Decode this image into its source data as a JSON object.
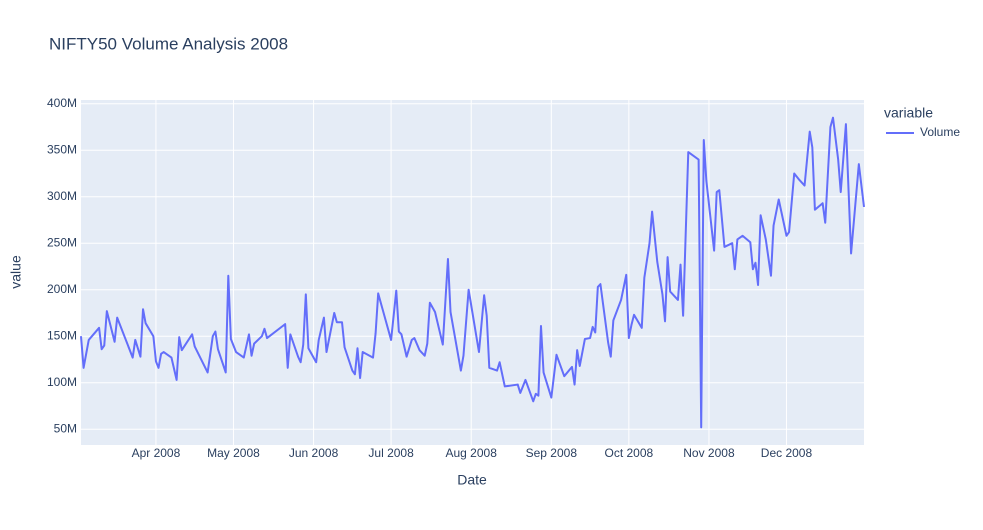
{
  "chart_data": {
    "type": "line",
    "title": "NIFTY50 Volume Analysis 2008",
    "x_label": "Date",
    "y_label": "value",
    "legend_title": "variable",
    "grid": true,
    "legend": "right",
    "xlim": [
      "2008-03-03",
      "2008-12-31"
    ],
    "ylim": [
      33000000,
      404000000
    ],
    "xticks": [
      {
        "value": "2008-04-01",
        "label": "Apr 2008"
      },
      {
        "value": "2008-05-01",
        "label": "May 2008"
      },
      {
        "value": "2008-06-01",
        "label": "Jun 2008"
      },
      {
        "value": "2008-07-01",
        "label": "Jul 2008"
      },
      {
        "value": "2008-08-01",
        "label": "Aug 2008"
      },
      {
        "value": "2008-09-01",
        "label": "Sep 2008"
      },
      {
        "value": "2008-10-01",
        "label": "Oct 2008"
      },
      {
        "value": "2008-11-01",
        "label": "Nov 2008"
      },
      {
        "value": "2008-12-01",
        "label": "Dec 2008"
      }
    ],
    "yticks": [
      {
        "value": 50000000,
        "label": "50M"
      },
      {
        "value": 100000000,
        "label": "100M"
      },
      {
        "value": 150000000,
        "label": "150M"
      },
      {
        "value": 200000000,
        "label": "200M"
      },
      {
        "value": 250000000,
        "label": "250M"
      },
      {
        "value": 300000000,
        "label": "300M"
      },
      {
        "value": 350000000,
        "label": "350M"
      },
      {
        "value": 400000000,
        "label": "400M"
      }
    ],
    "x": [
      "2008-03-03",
      "2008-03-04",
      "2008-03-06",
      "2008-03-10",
      "2008-03-11",
      "2008-03-12",
      "2008-03-13",
      "2008-03-16",
      "2008-03-17",
      "2008-03-23",
      "2008-03-24",
      "2008-03-26",
      "2008-03-27",
      "2008-03-28",
      "2008-03-31",
      "2008-04-01",
      "2008-04-02",
      "2008-04-03",
      "2008-04-04",
      "2008-04-07",
      "2008-04-09",
      "2008-04-10",
      "2008-04-11",
      "2008-04-15",
      "2008-04-16",
      "2008-04-21",
      "2008-04-23",
      "2008-04-24",
      "2008-04-25",
      "2008-04-28",
      "2008-04-29",
      "2008-04-30",
      "2008-05-02",
      "2008-05-05",
      "2008-05-07",
      "2008-05-08",
      "2008-05-09",
      "2008-05-12",
      "2008-05-13",
      "2008-05-14",
      "2008-05-21",
      "2008-05-22",
      "2008-05-23",
      "2008-05-26",
      "2008-05-27",
      "2008-05-28",
      "2008-05-29",
      "2008-05-30",
      "2008-06-02",
      "2008-06-03",
      "2008-06-05",
      "2008-06-06",
      "2008-06-09",
      "2008-06-10",
      "2008-06-12",
      "2008-06-13",
      "2008-06-16",
      "2008-06-17",
      "2008-06-18",
      "2008-06-19",
      "2008-06-20",
      "2008-06-24",
      "2008-06-25",
      "2008-06-26",
      "2008-07-01",
      "2008-07-03",
      "2008-07-04",
      "2008-07-05",
      "2008-07-07",
      "2008-07-09",
      "2008-07-10",
      "2008-07-12",
      "2008-07-14",
      "2008-07-15",
      "2008-07-16",
      "2008-07-18",
      "2008-07-21",
      "2008-07-23",
      "2008-07-24",
      "2008-07-28",
      "2008-07-29",
      "2008-07-31",
      "2008-08-04",
      "2008-08-06",
      "2008-08-07",
      "2008-08-08",
      "2008-08-11",
      "2008-08-12",
      "2008-08-14",
      "2008-08-19",
      "2008-08-20",
      "2008-08-22",
      "2008-08-25",
      "2008-08-26",
      "2008-08-27",
      "2008-08-28",
      "2008-08-29",
      "2008-09-01",
      "2008-09-03",
      "2008-09-06",
      "2008-09-09",
      "2008-09-10",
      "2008-09-11",
      "2008-09-12",
      "2008-09-14",
      "2008-09-16",
      "2008-09-17",
      "2008-09-18",
      "2008-09-19",
      "2008-09-20",
      "2008-09-23",
      "2008-09-24",
      "2008-09-25",
      "2008-09-28",
      "2008-09-30",
      "2008-10-01",
      "2008-10-02",
      "2008-10-03",
      "2008-10-06",
      "2008-10-07",
      "2008-10-09",
      "2008-10-10",
      "2008-10-12",
      "2008-10-14",
      "2008-10-15",
      "2008-10-16",
      "2008-10-17",
      "2008-10-20",
      "2008-10-21",
      "2008-10-22",
      "2008-10-24",
      "2008-10-28",
      "2008-10-29",
      "2008-10-30",
      "2008-10-31",
      "2008-11-03",
      "2008-11-04",
      "2008-11-05",
      "2008-11-07",
      "2008-11-10",
      "2008-11-11",
      "2008-11-12",
      "2008-11-14",
      "2008-11-17",
      "2008-11-18",
      "2008-11-19",
      "2008-11-20",
      "2008-11-21",
      "2008-11-23",
      "2008-11-25",
      "2008-11-26",
      "2008-11-28",
      "2008-12-01",
      "2008-12-02",
      "2008-12-04",
      "2008-12-06",
      "2008-12-08",
      "2008-12-10",
      "2008-12-11",
      "2008-12-12",
      "2008-12-15",
      "2008-12-16",
      "2008-12-18",
      "2008-12-19",
      "2008-12-21",
      "2008-12-22",
      "2008-12-24",
      "2008-12-26",
      "2008-12-29",
      "2008-12-31"
    ],
    "series": [
      {
        "name": "Volume",
        "color": "#636efa",
        "values": [
          150000000,
          116000000,
          146000000,
          159000000,
          136000000,
          140000000,
          177000000,
          144000000,
          170000000,
          127000000,
          146000000,
          128000000,
          179000000,
          164000000,
          150000000,
          123000000,
          116000000,
          131000000,
          133000000,
          127000000,
          103000000,
          149000000,
          135000000,
          152000000,
          139000000,
          111000000,
          150000000,
          155000000,
          136000000,
          111000000,
          215000000,
          147000000,
          133000000,
          127000000,
          152000000,
          129000000,
          142000000,
          150000000,
          158000000,
          148000000,
          163000000,
          116000000,
          152000000,
          128000000,
          122000000,
          141000000,
          195000000,
          137000000,
          122000000,
          146000000,
          170000000,
          133000000,
          175000000,
          165000000,
          165000000,
          138000000,
          113000000,
          109000000,
          137000000,
          105000000,
          133000000,
          127000000,
          153000000,
          196000000,
          146000000,
          199000000,
          155000000,
          152000000,
          128000000,
          146000000,
          148000000,
          135000000,
          129000000,
          142000000,
          186000000,
          176000000,
          141000000,
          233000000,
          176000000,
          113000000,
          129000000,
          200000000,
          133000000,
          194000000,
          172000000,
          116000000,
          113000000,
          122000000,
          96000000,
          98000000,
          89000000,
          103000000,
          80000000,
          88000000,
          86000000,
          161000000,
          111000000,
          84000000,
          130000000,
          107000000,
          117000000,
          98000000,
          135000000,
          118000000,
          147000000,
          148000000,
          160000000,
          154000000,
          203000000,
          206000000,
          143000000,
          128000000,
          167000000,
          189000000,
          216000000,
          148000000,
          162000000,
          173000000,
          159000000,
          213000000,
          250000000,
          284000000,
          230000000,
          195000000,
          166000000,
          235000000,
          198000000,
          189000000,
          227000000,
          172000000,
          348000000,
          340000000,
          52000000,
          361000000,
          317000000,
          242000000,
          305000000,
          307000000,
          246000000,
          250000000,
          222000000,
          254000000,
          258000000,
          251000000,
          222000000,
          229000000,
          205000000,
          280000000,
          254000000,
          215000000,
          269000000,
          297000000,
          258000000,
          262000000,
          325000000,
          318000000,
          312000000,
          370000000,
          353000000,
          286000000,
          293000000,
          272000000,
          375000000,
          385000000,
          340000000,
          305000000,
          378000000,
          239000000,
          335000000,
          289000000
        ]
      }
    ]
  }
}
